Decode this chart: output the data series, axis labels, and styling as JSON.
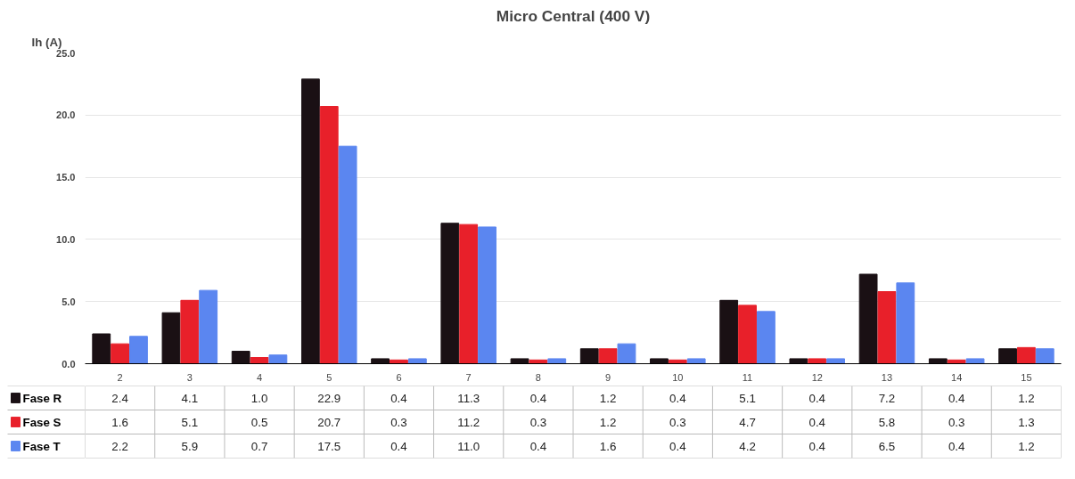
{
  "chart_data": {
    "type": "bar",
    "title": "Micro Central (400 V)",
    "ylabel": "Ih (A)",
    "categories": [
      "2",
      "3",
      "4",
      "5",
      "6",
      "7",
      "8",
      "9",
      "10",
      "11",
      "12",
      "13",
      "14",
      "15"
    ],
    "series": [
      {
        "name": "Fase R",
        "color": "#1a1014",
        "values": [
          2.4,
          4.1,
          1.0,
          22.9,
          0.4,
          11.3,
          0.4,
          1.2,
          0.4,
          5.1,
          0.4,
          7.2,
          0.4,
          1.2
        ],
        "value_labels": [
          "2.4",
          "4.1",
          "1.0",
          "22.9",
          "0.4",
          "11.3",
          "0.4",
          "1.2",
          "0.4",
          "5.1",
          "0.4",
          "7.2",
          "0.4",
          "1.2"
        ]
      },
      {
        "name": "Fase S",
        "color": "#e8202a",
        "values": [
          1.6,
          5.1,
          0.5,
          20.7,
          0.3,
          11.2,
          0.3,
          1.2,
          0.3,
          4.7,
          0.4,
          5.8,
          0.3,
          1.3
        ],
        "value_labels": [
          "1.6",
          "5.1",
          "0.5",
          "20.7",
          "0.3",
          "11.2",
          "0.3",
          "1.2",
          "0.3",
          "4.7",
          "0.4",
          "5.8",
          "0.3",
          "1.3"
        ]
      },
      {
        "name": "Fase T",
        "color": "#5b86f0",
        "values": [
          2.2,
          5.9,
          0.7,
          17.5,
          0.4,
          11.0,
          0.4,
          1.6,
          0.4,
          4.2,
          0.4,
          6.5,
          0.4,
          1.2
        ],
        "value_labels": [
          "2.2",
          "5.9",
          "0.7",
          "17.5",
          "0.4",
          "11.0",
          "0.4",
          "1.6",
          "0.4",
          "4.2",
          "0.4",
          "6.5",
          "0.4",
          "1.2"
        ]
      }
    ],
    "ylim": [
      0,
      25
    ],
    "yticks": [
      {
        "value": 0,
        "label": "0.0"
      },
      {
        "value": 5,
        "label": "5.0"
      },
      {
        "value": 10,
        "label": "10.0"
      },
      {
        "value": 15,
        "label": "15.0"
      },
      {
        "value": 20,
        "label": "20.0"
      },
      {
        "value": 25,
        "label": "25.0"
      }
    ],
    "grid": "y",
    "legend": "bottom left"
  }
}
